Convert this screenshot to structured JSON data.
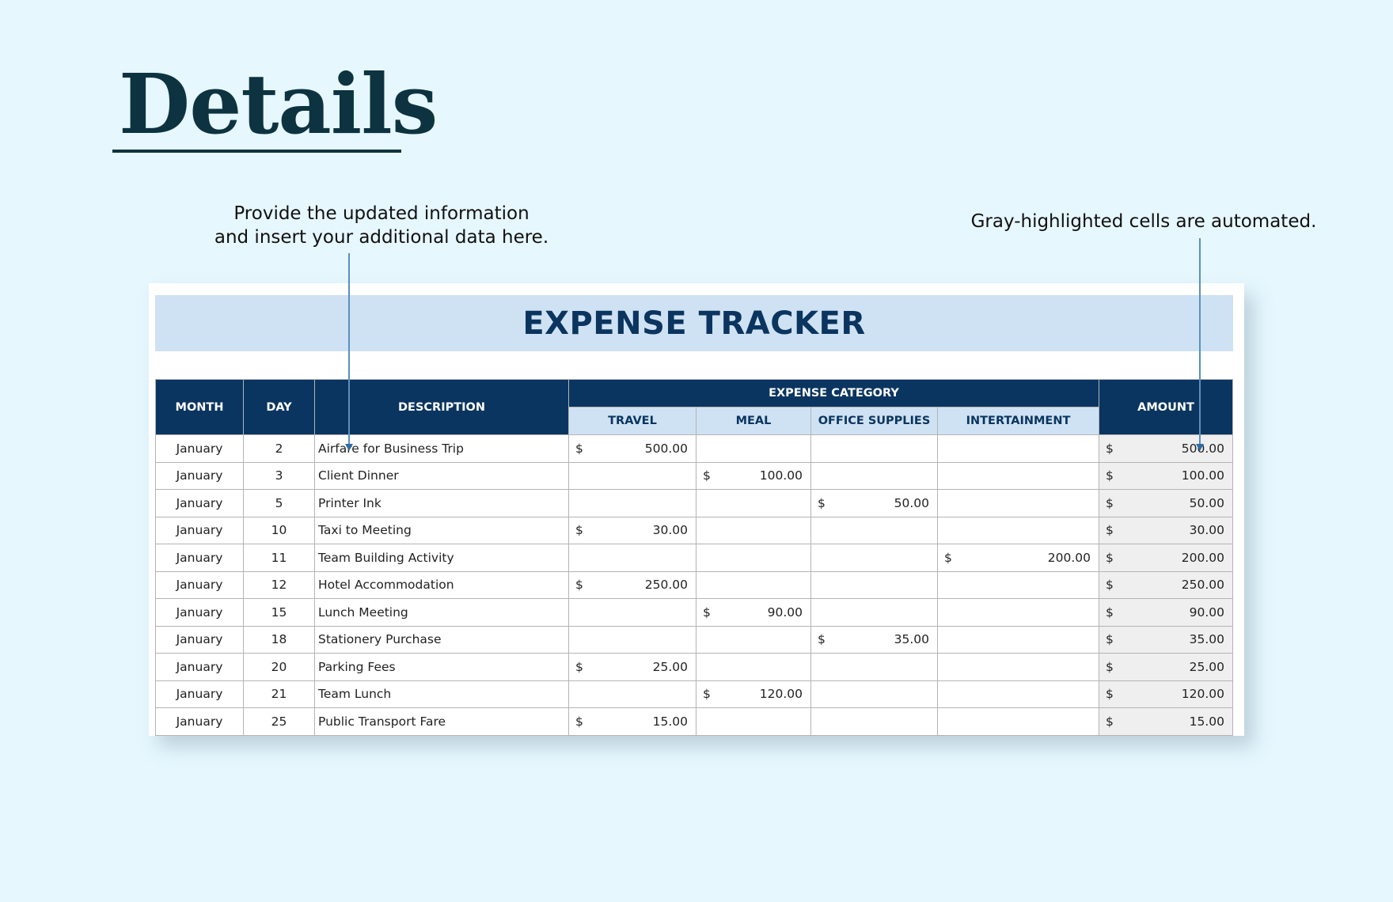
{
  "page": {
    "title": "Details",
    "note_left": "Provide the updated information and insert your additional data here.",
    "note_left_line1": "Provide the updated information",
    "note_left_line2": "and insert your additional data here.",
    "note_right": "Gray-highlighted cells are automated."
  },
  "sheet": {
    "title": "EXPENSE TRACKER",
    "headers": {
      "month": "MONTH",
      "day": "DAY",
      "description": "DESCRIPTION",
      "expense_category": "EXPENSE CATEGORY",
      "travel": "TRAVEL",
      "meal": "MEAL",
      "office_supplies": "OFFICE SUPPLIES",
      "entertainment": "INTERTAINMENT",
      "amount": "AMOUNT"
    },
    "currency_symbol": "$",
    "rows": [
      {
        "month": "January",
        "day": "2",
        "description": "Airfare for Business Trip",
        "travel": "500.00",
        "meal": "",
        "office": "",
        "entertainment": "",
        "amount": "500.00"
      },
      {
        "month": "January",
        "day": "3",
        "description": "Client Dinner",
        "travel": "",
        "meal": "100.00",
        "office": "",
        "entertainment": "",
        "amount": "100.00"
      },
      {
        "month": "January",
        "day": "5",
        "description": "Printer Ink",
        "travel": "",
        "meal": "",
        "office": "50.00",
        "entertainment": "",
        "amount": "50.00"
      },
      {
        "month": "January",
        "day": "10",
        "description": "Taxi to Meeting",
        "travel": "30.00",
        "meal": "",
        "office": "",
        "entertainment": "",
        "amount": "30.00"
      },
      {
        "month": "January",
        "day": "11",
        "description": "Team Building Activity",
        "travel": "",
        "meal": "",
        "office": "",
        "entertainment": "200.00",
        "amount": "200.00"
      },
      {
        "month": "January",
        "day": "12",
        "description": "Hotel Accommodation",
        "travel": "250.00",
        "meal": "",
        "office": "",
        "entertainment": "",
        "amount": "250.00"
      },
      {
        "month": "January",
        "day": "15",
        "description": "Lunch Meeting",
        "travel": "",
        "meal": "90.00",
        "office": "",
        "entertainment": "",
        "amount": "90.00"
      },
      {
        "month": "January",
        "day": "18",
        "description": "Stationery Purchase",
        "travel": "",
        "meal": "",
        "office": "35.00",
        "entertainment": "",
        "amount": "35.00"
      },
      {
        "month": "January",
        "day": "20",
        "description": "Parking Fees",
        "travel": "25.00",
        "meal": "",
        "office": "",
        "entertainment": "",
        "amount": "25.00"
      },
      {
        "month": "January",
        "day": "21",
        "description": "Team Lunch",
        "travel": "",
        "meal": "120.00",
        "office": "",
        "entertainment": "",
        "amount": "120.00"
      },
      {
        "month": "January",
        "day": "25",
        "description": "Public Transport Fare",
        "travel": "15.00",
        "meal": "",
        "office": "",
        "entertainment": "",
        "amount": "15.00"
      }
    ]
  },
  "colors": {
    "background": "#e6f7fe",
    "title": "#0e3340",
    "header_dark": "#0a3560",
    "header_light": "#cfe2f3",
    "automated_cell": "#efefef",
    "connector": "#5b8fbe"
  }
}
